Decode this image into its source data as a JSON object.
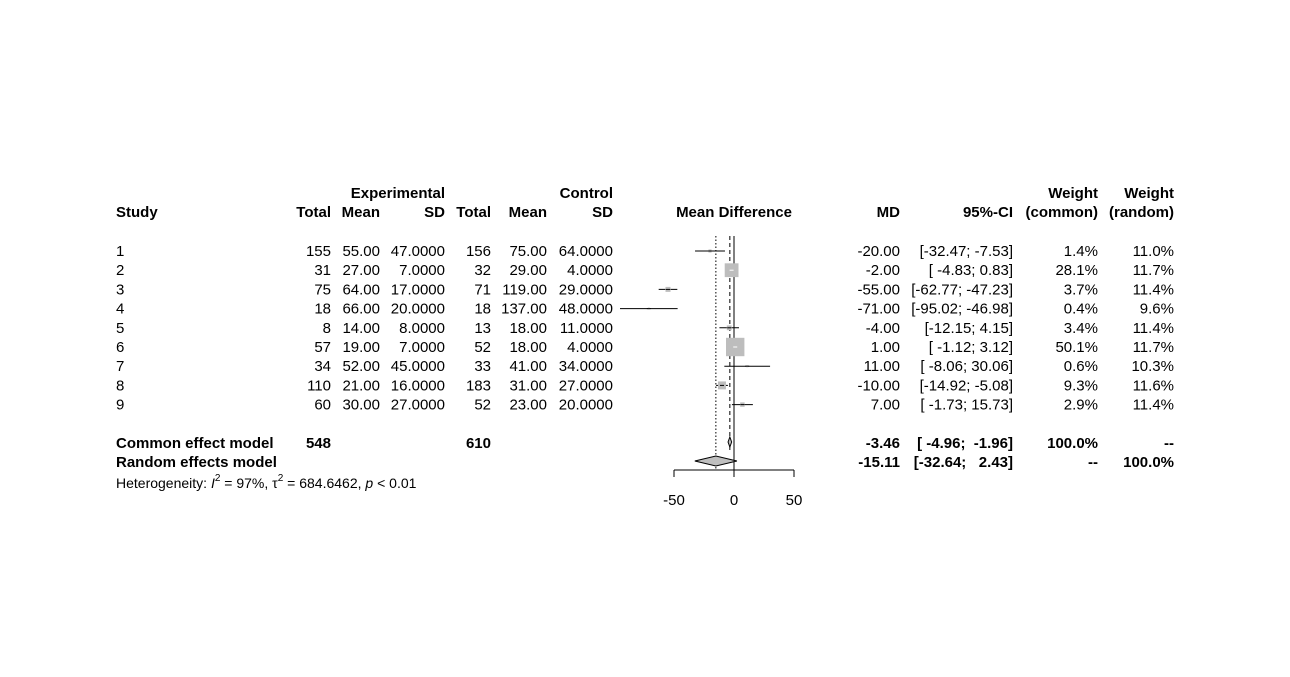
{
  "chart_data": {
    "type": "forest",
    "group_headers": {
      "experimental": "Experimental",
      "control": "Control"
    },
    "columns": {
      "study": "Study",
      "exp_total": "Total",
      "exp_mean": "Mean",
      "exp_sd": "SD",
      "ctl_total": "Total",
      "ctl_mean": "Mean",
      "ctl_sd": "SD",
      "plot": "Mean Difference",
      "md": "MD",
      "ci": "95%-CI",
      "w_common_1": "Weight",
      "w_common_2": "(common)",
      "w_random_1": "Weight",
      "w_random_2": "(random)"
    },
    "studies": [
      {
        "study": "1",
        "exp_total": "155",
        "exp_mean": "55.00",
        "exp_sd": "47.0000",
        "ctl_total": "156",
        "ctl_mean": "75.00",
        "ctl_sd": "64.0000",
        "md": "-20.00",
        "ci": "[-32.47;  -7.53]",
        "w_common": "1.4%",
        "w_random": "11.0%",
        "md_val": -20.0,
        "lo": -32.47,
        "hi": -7.53,
        "w": 1.4
      },
      {
        "study": "2",
        "exp_total": "31",
        "exp_mean": "27.00",
        "exp_sd": "7.0000",
        "ctl_total": "32",
        "ctl_mean": "29.00",
        "ctl_sd": "4.0000",
        "md": "-2.00",
        "ci": "[ -4.83;   0.83]",
        "w_common": "28.1%",
        "w_random": "11.7%",
        "md_val": -2.0,
        "lo": -4.83,
        "hi": 0.83,
        "w": 28.1
      },
      {
        "study": "3",
        "exp_total": "75",
        "exp_mean": "64.00",
        "exp_sd": "17.0000",
        "ctl_total": "71",
        "ctl_mean": "119.00",
        "ctl_sd": "29.0000",
        "md": "-55.00",
        "ci": "[-62.77; -47.23]",
        "w_common": "3.7%",
        "w_random": "11.4%",
        "md_val": -55.0,
        "lo": -62.77,
        "hi": -47.23,
        "w": 3.7
      },
      {
        "study": "4",
        "exp_total": "18",
        "exp_mean": "66.00",
        "exp_sd": "20.0000",
        "ctl_total": "18",
        "ctl_mean": "137.00",
        "ctl_sd": "48.0000",
        "md": "-71.00",
        "ci": "[-95.02; -46.98]",
        "w_common": "0.4%",
        "w_random": "9.6%",
        "md_val": -71.0,
        "lo": -95.02,
        "hi": -46.98,
        "w": 0.4
      },
      {
        "study": "5",
        "exp_total": "8",
        "exp_mean": "14.00",
        "exp_sd": "8.0000",
        "ctl_total": "13",
        "ctl_mean": "18.00",
        "ctl_sd": "11.0000",
        "md": "-4.00",
        "ci": "[-12.15;   4.15]",
        "w_common": "3.4%",
        "w_random": "11.4%",
        "md_val": -4.0,
        "lo": -12.15,
        "hi": 4.15,
        "w": 3.4
      },
      {
        "study": "6",
        "exp_total": "57",
        "exp_mean": "19.00",
        "exp_sd": "7.0000",
        "ctl_total": "52",
        "ctl_mean": "18.00",
        "ctl_sd": "4.0000",
        "md": "1.00",
        "ci": "[ -1.12;   3.12]",
        "w_common": "50.1%",
        "w_random": "11.7%",
        "md_val": 1.0,
        "lo": -1.12,
        "hi": 3.12,
        "w": 50.1
      },
      {
        "study": "7",
        "exp_total": "34",
        "exp_mean": "52.00",
        "exp_sd": "45.0000",
        "ctl_total": "33",
        "ctl_mean": "41.00",
        "ctl_sd": "34.0000",
        "md": "11.00",
        "ci": "[ -8.06;  30.06]",
        "w_common": "0.6%",
        "w_random": "10.3%",
        "md_val": 11.0,
        "lo": -8.06,
        "hi": 30.06,
        "w": 0.6
      },
      {
        "study": "8",
        "exp_total": "110",
        "exp_mean": "21.00",
        "exp_sd": "16.0000",
        "ctl_total": "183",
        "ctl_mean": "31.00",
        "ctl_sd": "27.0000",
        "md": "-10.00",
        "ci": "[-14.92;  -5.08]",
        "w_common": "9.3%",
        "w_random": "11.6%",
        "md_val": -10.0,
        "lo": -14.92,
        "hi": -5.08,
        "w": 9.3
      },
      {
        "study": "9",
        "exp_total": "60",
        "exp_mean": "30.00",
        "exp_sd": "27.0000",
        "ctl_total": "52",
        "ctl_mean": "23.00",
        "ctl_sd": "20.0000",
        "md": "7.00",
        "ci": "[ -1.73;  15.73]",
        "w_common": "2.9%",
        "w_random": "11.4%",
        "md_val": 7.0,
        "lo": -1.73,
        "hi": 15.73,
        "w": 2.9
      }
    ],
    "common": {
      "label": "Common effect model",
      "exp_total": "548",
      "ctl_total": "610",
      "md": "-3.46",
      "ci": "[ -4.96;  -1.96]",
      "w_common": "100.0%",
      "w_random": "--",
      "md_val": -3.46,
      "lo": -4.96,
      "hi": -1.96
    },
    "random": {
      "label": "Random effects model",
      "md": "-15.11",
      "ci": "[-32.64;   2.43]",
      "w_common": "--",
      "w_random": "100.0%",
      "md_val": -15.11,
      "lo": -32.64,
      "hi": 2.43
    },
    "heterogeneity": {
      "prefix": "Heterogeneity: ",
      "i_sym": "I",
      "i_sup": "2",
      "i_val": " = 97%, ",
      "tau_sym": "τ",
      "tau_sup": "2",
      "tau_val": " = 684.6462, ",
      "p_sym": "p",
      "p_val": " < 0.01"
    },
    "x_ticks": [
      -50,
      0,
      50
    ],
    "x_range": [
      -50,
      50
    ]
  }
}
